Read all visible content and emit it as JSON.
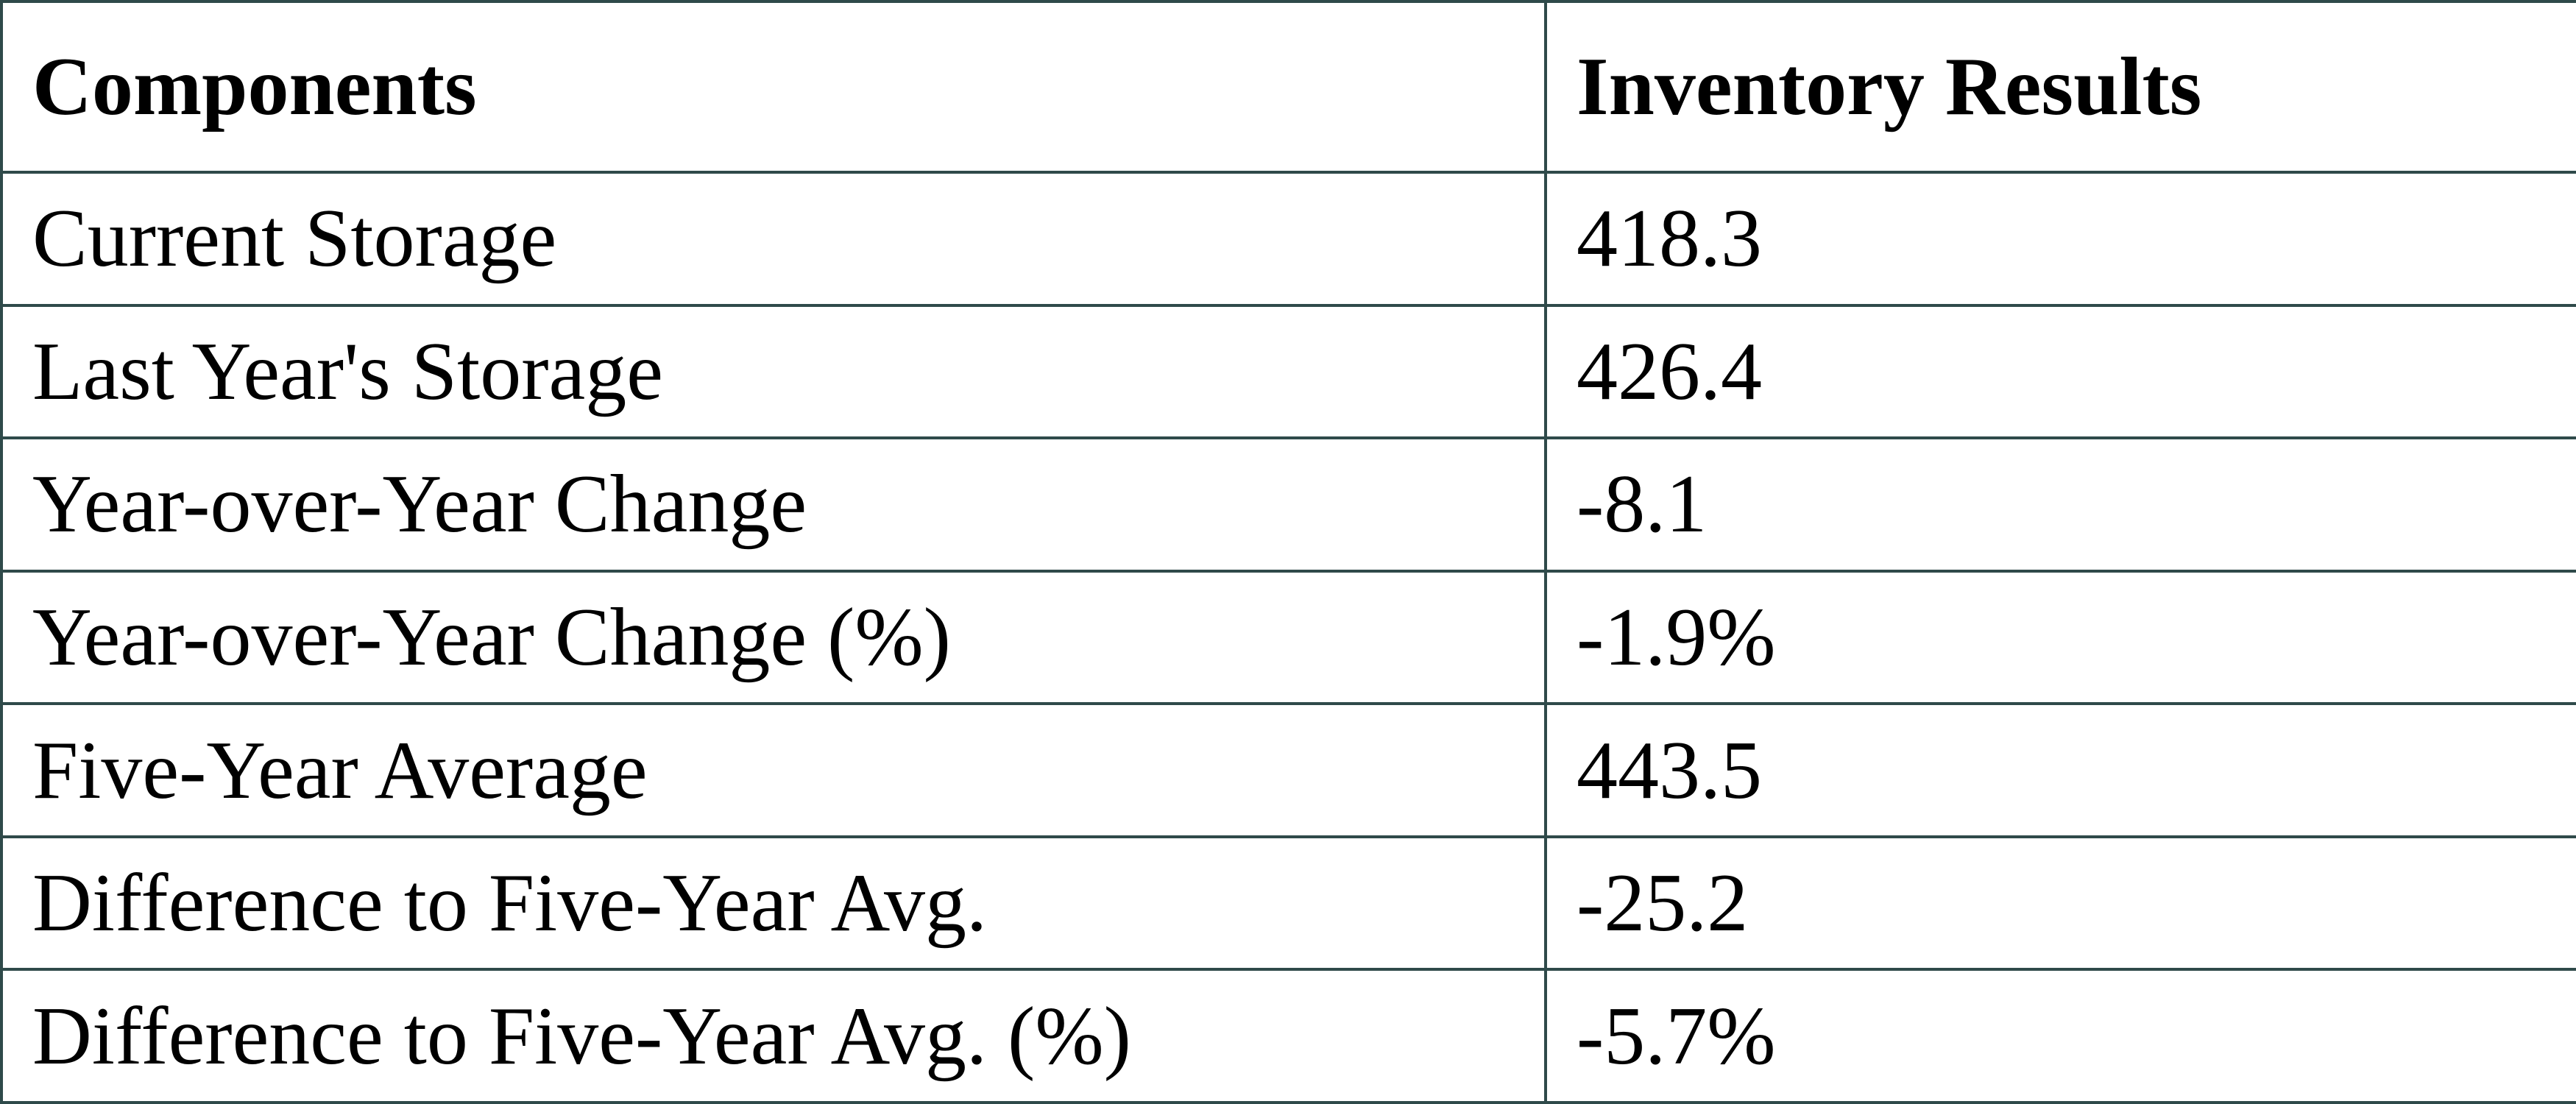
{
  "table": {
    "header": [
      "Components",
      "Inventory Results"
    ],
    "rows": [
      [
        "Current Storage",
        "418.3"
      ],
      [
        "Last Year's Storage",
        "426.4"
      ],
      [
        "Year-over-Year Change",
        "-8.1"
      ],
      [
        "Year-over-Year Change (%)",
        "-1.9%"
      ],
      [
        "Five-Year Average",
        "443.5"
      ],
      [
        "Difference to Five-Year Avg.",
        "-25.2"
      ],
      [
        "Difference to Five-Year Avg. (%)",
        "-5.7%"
      ]
    ]
  }
}
